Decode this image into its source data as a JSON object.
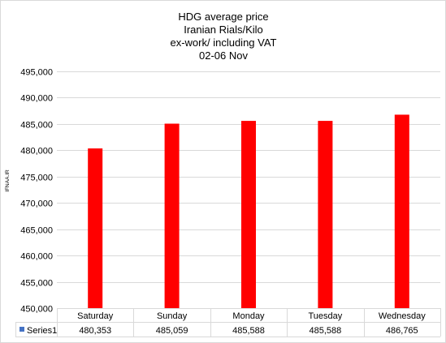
{
  "chart_data": {
    "type": "bar",
    "title_lines": [
      "HDG average  price",
      "Iranian  Rials/Kilo",
      "ex-work/ including VAT",
      "02-06  Nov"
    ],
    "watermark": "IFNAA.IR",
    "categories": [
      "Saturday",
      "Sunday",
      "Monday",
      "Tuesday",
      "Wednesday"
    ],
    "series": [
      {
        "name": "Series1",
        "values": [
          480353,
          485059,
          485588,
          485588,
          486765
        ],
        "display_values": [
          "480,353",
          "485,059",
          "485,588",
          "485,588",
          "486,765"
        ],
        "color": "#ff0000"
      }
    ],
    "ylim": [
      450000,
      495000
    ],
    "yticks": [
      450000,
      455000,
      460000,
      465000,
      470000,
      475000,
      480000,
      485000,
      490000,
      495000
    ],
    "ytick_labels": [
      "450,000",
      "455,000",
      "460,000",
      "465,000",
      "470,000",
      "475,000",
      "480,000",
      "485,000",
      "490,000",
      "495,000"
    ],
    "grid": true,
    "data_table": true,
    "gridline_color": "#d9d9d9",
    "bar_color": "#ff0000"
  }
}
